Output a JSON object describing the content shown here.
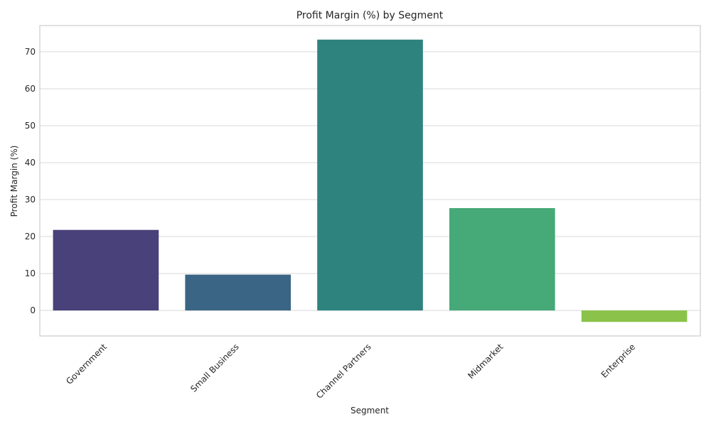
{
  "chart_data": {
    "type": "bar",
    "title": "Profit Margin (%) by Segment",
    "xlabel": "Segment",
    "ylabel": "Profit Margin (%)",
    "categories": [
      "Government",
      "Small Business",
      "Channel Partners",
      "Midmarket",
      "Enterprise"
    ],
    "values": [
      21.8,
      9.7,
      73.3,
      27.7,
      -3.1
    ],
    "colors": [
      "#48417a",
      "#3b6584",
      "#2e837e",
      "#46a978",
      "#8bc34a"
    ],
    "yticks": [
      0,
      10,
      20,
      30,
      40,
      50,
      60,
      70
    ],
    "ylim": [
      -6.9,
      77.1
    ],
    "grid": true,
    "legend": "none"
  }
}
